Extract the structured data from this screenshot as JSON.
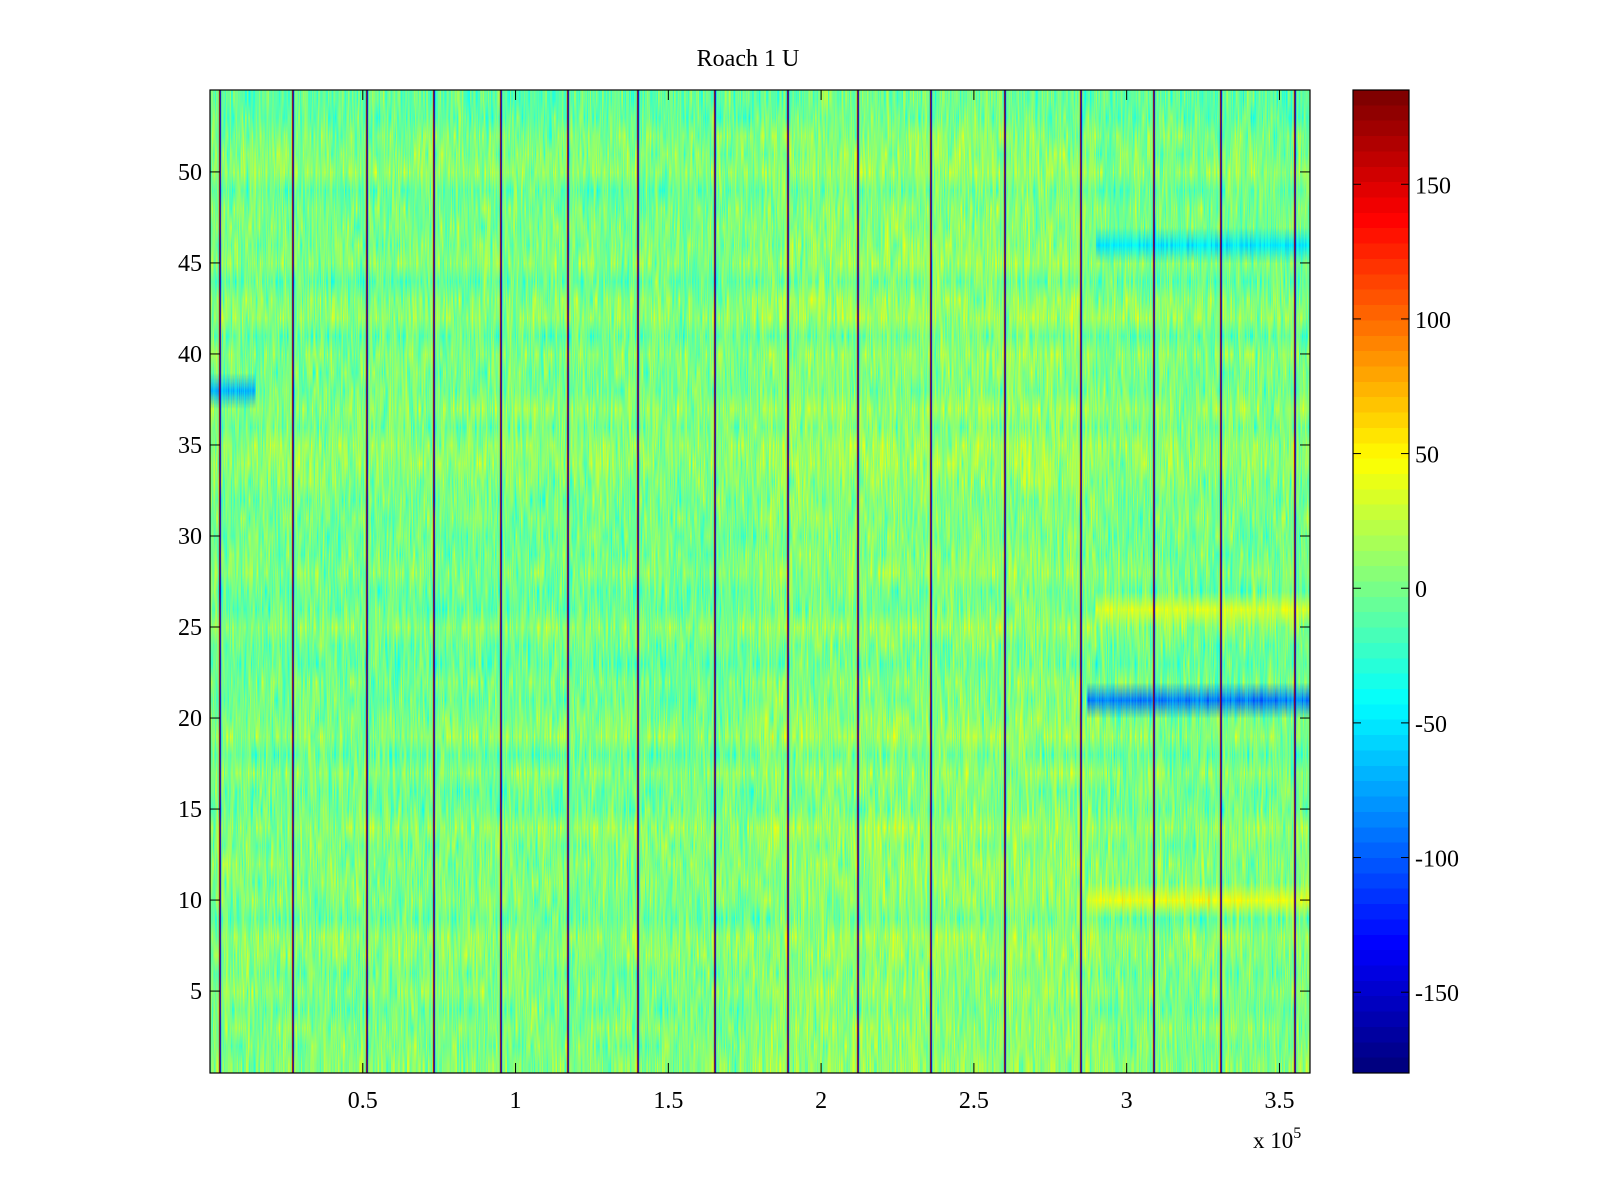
{
  "chart_data": {
    "type": "heatmap",
    "title": "Roach 1 U",
    "xlabel": "",
    "ylabel": "",
    "x_exponent_label": "x 10",
    "x_exponent_power": "5",
    "xlim": [
      0,
      3.6
    ],
    "ylim": [
      0.5,
      54.5
    ],
    "xticks": [
      0.5,
      1,
      1.5,
      2,
      2.5,
      3,
      3.5
    ],
    "xtick_labels": [
      "0.5",
      "1",
      "1.5",
      "2",
      "2.5",
      "3",
      "3.5"
    ],
    "yticks": [
      5,
      10,
      15,
      20,
      25,
      30,
      35,
      40,
      45,
      50
    ],
    "ytick_labels": [
      "5",
      "10",
      "15",
      "20",
      "25",
      "30",
      "35",
      "40",
      "45",
      "50"
    ],
    "rows": 54,
    "colormap": "jet",
    "clim": [
      -180,
      185
    ],
    "colorbar_ticks": [
      -150,
      -100,
      -50,
      0,
      50,
      100,
      150
    ],
    "colorbar_tick_labels": [
      "-150",
      "-100",
      "-50",
      "0",
      "50",
      "100",
      "150"
    ],
    "event_columns_x": [
      0.03,
      0.27,
      0.51,
      0.73,
      0.95,
      1.17,
      1.4,
      1.65,
      1.89,
      2.12,
      2.36,
      2.6,
      2.85,
      3.09,
      3.31,
      3.55
    ],
    "notable_bands": [
      {
        "row": 21,
        "x_start": 2.87,
        "x_end": 3.6,
        "value": -90
      },
      {
        "row": 10,
        "x_start": 2.87,
        "x_end": 3.6,
        "value": 40
      },
      {
        "row": 26,
        "x_start": 2.9,
        "x_end": 3.6,
        "value": 35
      },
      {
        "row": 38,
        "x_start": 0.0,
        "x_end": 0.15,
        "value": -70
      },
      {
        "row": 46,
        "x_start": 2.9,
        "x_end": 3.6,
        "value": -50
      }
    ],
    "typical_value_range": [
      -40,
      40
    ]
  }
}
